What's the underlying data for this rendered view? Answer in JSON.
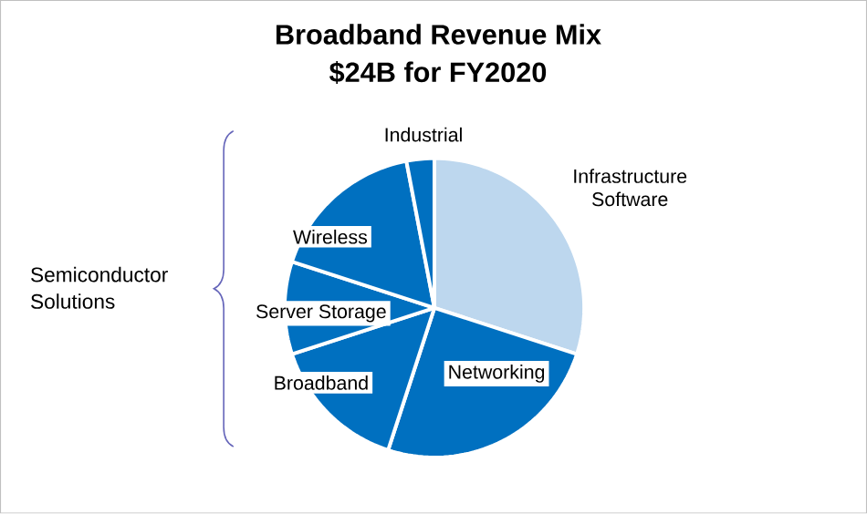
{
  "chart_data": {
    "type": "pie",
    "title": "Broadband Revenue Mix",
    "subtitle": "$24B for FY2020",
    "categories": [
      "Infrastructure Software",
      "Networking",
      "Broadband",
      "Server Storage",
      "Wireless",
      "Industrial"
    ],
    "values": [
      30,
      25,
      15,
      10,
      17,
      3
    ],
    "colors": [
      "#bdd7ee",
      "#0070c0",
      "#0070c0",
      "#0070c0",
      "#0070c0",
      "#0070c0"
    ],
    "annotations": [
      "Semiconductor Solutions"
    ]
  }
}
